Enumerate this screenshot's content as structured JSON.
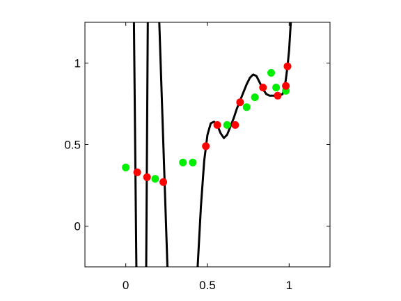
{
  "chart_data": {
    "type": "scatter",
    "title": "",
    "xlabel": "",
    "ylabel": "",
    "xlim": [
      -0.25,
      1.25
    ],
    "ylim": [
      -0.25,
      1.25
    ],
    "x_ticks": [
      0,
      0.5,
      1
    ],
    "x_tick_labels": [
      "0",
      "0.5",
      "1"
    ],
    "y_ticks": [
      0,
      0.5,
      1
    ],
    "y_tick_labels": [
      "0",
      "0.5",
      "1"
    ],
    "grid": false,
    "legend": "none",
    "series": [
      {
        "kind": "points",
        "color": "#00ee00",
        "points": [
          [
            0.0,
            0.36
          ],
          [
            0.18,
            0.29
          ],
          [
            0.35,
            0.39
          ],
          [
            0.41,
            0.39
          ],
          [
            0.62,
            0.62
          ],
          [
            0.74,
            0.73
          ],
          [
            0.79,
            0.79
          ],
          [
            0.89,
            0.94
          ],
          [
            0.92,
            0.85
          ],
          [
            0.98,
            0.83
          ]
        ]
      },
      {
        "kind": "points",
        "color": "#ff0000",
        "points": [
          [
            0.07,
            0.33
          ],
          [
            0.13,
            0.3
          ],
          [
            0.23,
            0.27
          ],
          [
            0.49,
            0.49
          ],
          [
            0.56,
            0.62
          ],
          [
            0.67,
            0.62
          ],
          [
            0.7,
            0.76
          ],
          [
            0.84,
            0.85
          ],
          [
            0.93,
            0.8
          ],
          [
            0.98,
            0.86
          ],
          [
            0.99,
            0.98
          ]
        ]
      },
      {
        "kind": "curve",
        "color": "#000000",
        "segments": [
          [
            [
              0.05,
              1.25
            ],
            [
              0.065,
              -0.25
            ]
          ],
          [
            [
              0.125,
              -0.25
            ],
            [
              0.135,
              1.25
            ]
          ],
          [
            [
              0.205,
              1.25
            ],
            [
              0.24,
              0.2
            ],
            [
              0.255,
              -0.25
            ]
          ],
          [
            [
              0.44,
              -0.25
            ],
            [
              0.46,
              0.12
            ],
            [
              0.48,
              0.4
            ],
            [
              0.5,
              0.56
            ],
            [
              0.52,
              0.63
            ],
            [
              0.54,
              0.64
            ],
            [
              0.56,
              0.62
            ],
            [
              0.58,
              0.57
            ],
            [
              0.6,
              0.54
            ],
            [
              0.62,
              0.56
            ],
            [
              0.64,
              0.61
            ],
            [
              0.66,
              0.66
            ],
            [
              0.68,
              0.72
            ],
            [
              0.7,
              0.77
            ],
            [
              0.72,
              0.82
            ],
            [
              0.74,
              0.87
            ],
            [
              0.76,
              0.91
            ],
            [
              0.78,
              0.93
            ],
            [
              0.8,
              0.92
            ],
            [
              0.82,
              0.88
            ],
            [
              0.84,
              0.84
            ],
            [
              0.86,
              0.81
            ],
            [
              0.88,
              0.8
            ],
            [
              0.9,
              0.8
            ],
            [
              0.92,
              0.8
            ],
            [
              0.94,
              0.8
            ],
            [
              0.96,
              0.81
            ],
            [
              0.97,
              0.84
            ],
            [
              0.98,
              0.9
            ],
            [
              0.99,
              0.98
            ],
            [
              1.0,
              1.08
            ],
            [
              1.01,
              1.25
            ]
          ]
        ]
      }
    ]
  }
}
